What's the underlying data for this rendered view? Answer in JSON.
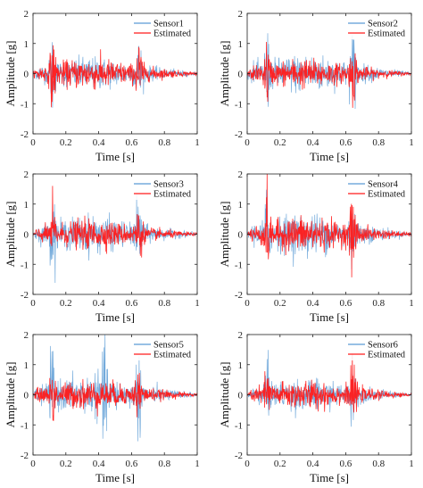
{
  "chart_data": [
    {
      "type": "line",
      "xlabel": "Time [s]",
      "ylabel": "Amplitude [g]",
      "xlim": [
        0,
        1
      ],
      "ylim": [
        -2,
        2
      ],
      "xticks": [
        "0",
        "0.2",
        "0.4",
        "0.6",
        "0.8",
        "1"
      ],
      "yticks": [
        "-2",
        "-1",
        "0",
        "1",
        "2"
      ],
      "grid": false,
      "legend_position": "top-right",
      "series": [
        {
          "name": "Sensor1",
          "color": "#5b9bd5",
          "peak_amplitude": 1.25
        },
        {
          "name": "Estimated",
          "color": "#ff1a1a",
          "peak_amplitude": 1.4
        }
      ]
    },
    {
      "type": "line",
      "xlabel": "Time [s]",
      "ylabel": "Amplitude [g]",
      "xlim": [
        0,
        1
      ],
      "ylim": [
        -2,
        2
      ],
      "xticks": [
        "0",
        "0.2",
        "0.4",
        "0.6",
        "0.8",
        "1"
      ],
      "yticks": [
        "-2",
        "-1",
        "0",
        "1",
        "2"
      ],
      "grid": false,
      "legend_position": "top-right",
      "series": [
        {
          "name": "Sensor2",
          "color": "#5b9bd5",
          "peak_amplitude": 1.5
        },
        {
          "name": "Estimated",
          "color": "#ff1a1a",
          "peak_amplitude": 1.3
        }
      ]
    },
    {
      "type": "line",
      "xlabel": "Time [s]",
      "ylabel": "Amplitude [g]",
      "xlim": [
        0,
        1
      ],
      "ylim": [
        -2,
        2
      ],
      "xticks": [
        "0",
        "0.2",
        "0.4",
        "0.6",
        "0.8",
        "1"
      ],
      "yticks": [
        "-2",
        "-1",
        "0",
        "1",
        "2"
      ],
      "grid": false,
      "legend_position": "top-right",
      "series": [
        {
          "name": "Sensor3",
          "color": "#5b9bd5",
          "peak_amplitude": 1.4
        },
        {
          "name": "Estimated",
          "color": "#ff1a1a",
          "peak_amplitude": 1.3
        }
      ]
    },
    {
      "type": "line",
      "xlabel": "Time [s]",
      "ylabel": "Amplitude [g]",
      "xlim": [
        0,
        1
      ],
      "ylim": [
        -2,
        2
      ],
      "xticks": [
        "0",
        "0.2",
        "0.4",
        "0.6",
        "0.8",
        "1"
      ],
      "yticks": [
        "-2",
        "-1",
        "0",
        "1",
        "2"
      ],
      "grid": false,
      "legend_position": "top-right",
      "series": [
        {
          "name": "Sensor4",
          "color": "#5b9bd5",
          "peak_amplitude": 1.6
        },
        {
          "name": "Estimated",
          "color": "#ff1a1a",
          "peak_amplitude": 1.6
        }
      ]
    },
    {
      "type": "line",
      "xlabel": "Time [s]",
      "ylabel": "Amplitude [g]",
      "xlim": [
        0,
        1
      ],
      "ylim": [
        -2,
        2
      ],
      "xticks": [
        "0",
        "0.2",
        "0.4",
        "0.6",
        "0.8",
        "1"
      ],
      "yticks": [
        "-2",
        "-1",
        "0",
        "1",
        "2"
      ],
      "grid": false,
      "legend_position": "top-right",
      "series": [
        {
          "name": "Sensor5",
          "color": "#5b9bd5",
          "peak_amplitude": 1.5
        },
        {
          "name": "Estimated",
          "color": "#ff1a1a",
          "peak_amplitude": 1.3
        }
      ]
    },
    {
      "type": "line",
      "xlabel": "Time [s]",
      "ylabel": "Amplitude [g]",
      "xlim": [
        0,
        1
      ],
      "ylim": [
        -2,
        2
      ],
      "xticks": [
        "0",
        "0.2",
        "0.4",
        "0.6",
        "0.8",
        "1"
      ],
      "yticks": [
        "-2",
        "-1",
        "0",
        "1",
        "2"
      ],
      "grid": false,
      "legend_position": "top-right",
      "series": [
        {
          "name": "Sensor6",
          "color": "#5b9bd5",
          "peak_amplitude": 1.2
        },
        {
          "name": "Estimated",
          "color": "#ff1a1a",
          "peak_amplitude": 1.3
        }
      ]
    }
  ]
}
